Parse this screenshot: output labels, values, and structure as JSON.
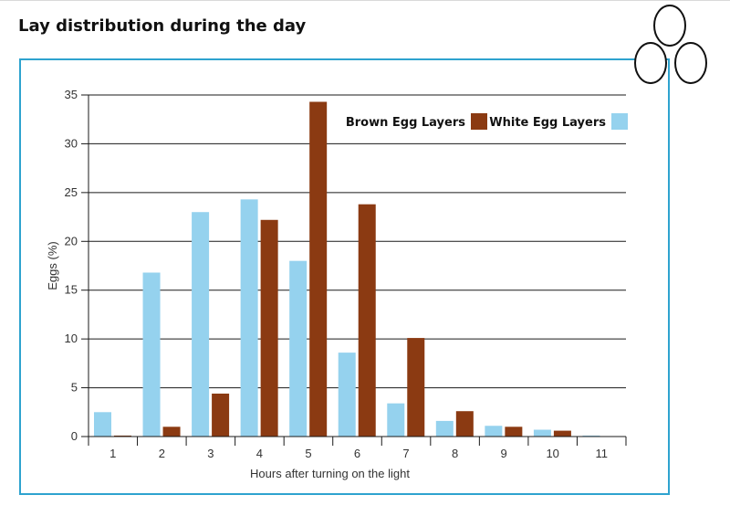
{
  "page": {
    "title": "Lay distribution during the day",
    "colors": {
      "frame": "#2ea3cf",
      "brown": "#8b3a12",
      "white": "#95d2ee",
      "grid": "#1a1a1a"
    },
    "decoration": "egg-cluster-icon"
  },
  "chart_data": {
    "type": "bar",
    "xlabel": "Hours after turning on the light",
    "ylabel": "Eggs (%)",
    "ylim": [
      0,
      35
    ],
    "yticks": [
      0,
      5,
      10,
      15,
      20,
      25,
      30,
      35
    ],
    "grid": true,
    "legend_position": "top-right",
    "categories": [
      "1",
      "2",
      "3",
      "4",
      "5",
      "6",
      "7",
      "8",
      "9",
      "10",
      "11"
    ],
    "series": [
      {
        "name": "White Egg Layers",
        "color": "#95d2ee",
        "values": [
          2.5,
          16.8,
          23.0,
          24.3,
          18.0,
          8.6,
          3.4,
          1.6,
          1.1,
          0.7,
          0.1
        ]
      },
      {
        "name": "Brown Egg Layers",
        "color": "#8b3a12",
        "values": [
          0.1,
          1.0,
          4.4,
          22.2,
          34.3,
          23.8,
          10.1,
          2.6,
          1.0,
          0.6,
          0.0
        ]
      }
    ],
    "legend_order": [
      "Brown Egg Layers",
      "White Egg Layers"
    ]
  }
}
